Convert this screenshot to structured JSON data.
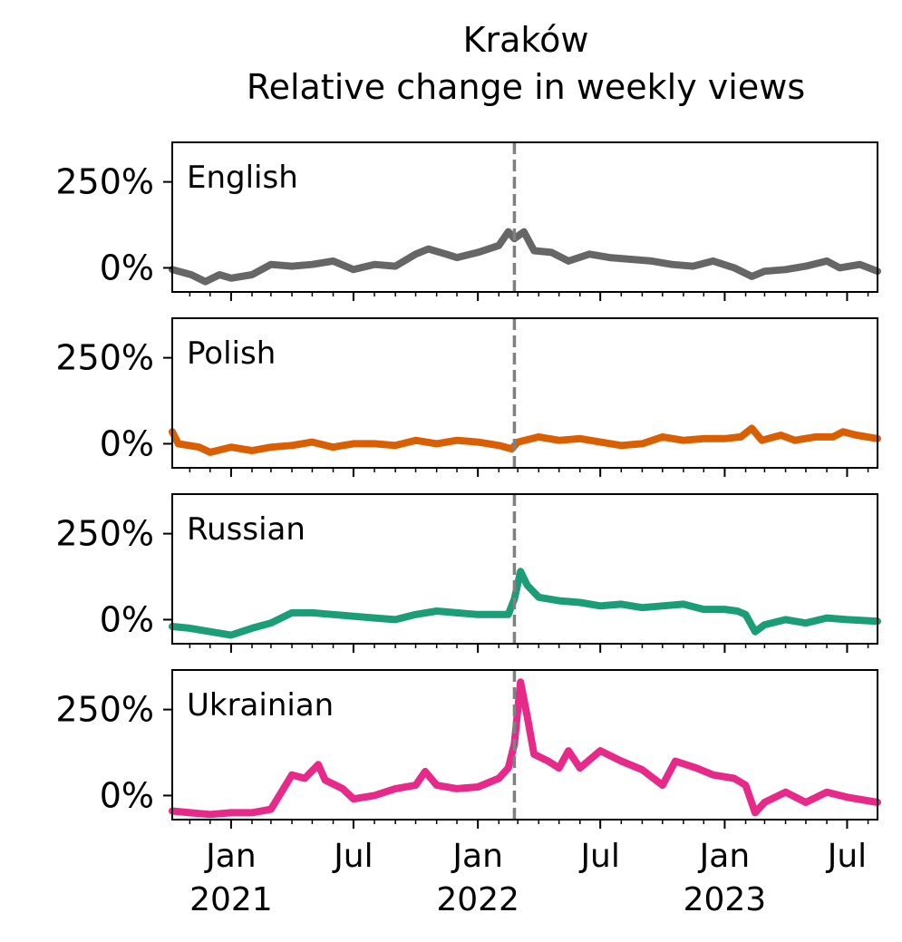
{
  "title": "Kraków",
  "subtitle": "Relative change in weekly views",
  "chart_data": {
    "type": "line",
    "x_axis": {
      "type": "date",
      "range": [
        "2020-10-06",
        "2023-08-15"
      ],
      "major_ticks": [
        {
          "date": "2021-01-01",
          "label_line1": "Jan",
          "label_line2": "2021"
        },
        {
          "date": "2021-07-01",
          "label_line1": "Jul",
          "label_line2": ""
        },
        {
          "date": "2022-01-01",
          "label_line1": "Jan",
          "label_line2": "2022"
        },
        {
          "date": "2022-07-01",
          "label_line1": "Jul",
          "label_line2": ""
        },
        {
          "date": "2023-01-01",
          "label_line1": "Jan",
          "label_line2": "2023"
        },
        {
          "date": "2023-07-01",
          "label_line1": "Jul",
          "label_line2": ""
        }
      ],
      "minor_ticks": "monthly"
    },
    "y_axis": {
      "unit": "%",
      "ylim": [
        -70,
        365
      ],
      "tick_labels": [
        {
          "value": 0,
          "label": "0%"
        },
        {
          "value": 250,
          "label": "250%"
        }
      ]
    },
    "reference_line": {
      "date": "2022-02-24",
      "style": "dashed",
      "color": "#808080"
    },
    "grid": false,
    "legend": "none; series names printed inside each panel",
    "panels": [
      {
        "name": "English",
        "color": "#666666",
        "points": [
          [
            "2020-10-06",
            -5
          ],
          [
            "2020-11-03",
            -20
          ],
          [
            "2020-11-24",
            -40
          ],
          [
            "2020-12-15",
            -20
          ],
          [
            "2021-01-01",
            -30
          ],
          [
            "2021-02-01",
            -20
          ],
          [
            "2021-03-01",
            10
          ],
          [
            "2021-04-01",
            5
          ],
          [
            "2021-05-01",
            10
          ],
          [
            "2021-06-01",
            20
          ],
          [
            "2021-07-01",
            -5
          ],
          [
            "2021-08-01",
            10
          ],
          [
            "2021-09-01",
            5
          ],
          [
            "2021-10-01",
            40
          ],
          [
            "2021-10-20",
            55
          ],
          [
            "2021-11-15",
            40
          ],
          [
            "2021-12-01",
            30
          ],
          [
            "2022-01-01",
            45
          ],
          [
            "2022-02-01",
            65
          ],
          [
            "2022-02-15",
            105
          ],
          [
            "2022-02-24",
            85
          ],
          [
            "2022-03-10",
            105
          ],
          [
            "2022-03-25",
            50
          ],
          [
            "2022-04-20",
            45
          ],
          [
            "2022-05-15",
            20
          ],
          [
            "2022-06-15",
            40
          ],
          [
            "2022-07-15",
            30
          ],
          [
            "2022-08-15",
            25
          ],
          [
            "2022-09-15",
            20
          ],
          [
            "2022-10-15",
            10
          ],
          [
            "2022-11-15",
            5
          ],
          [
            "2022-12-15",
            20
          ],
          [
            "2023-01-15",
            0
          ],
          [
            "2023-02-10",
            -25
          ],
          [
            "2023-03-01",
            -10
          ],
          [
            "2023-04-01",
            -5
          ],
          [
            "2023-05-01",
            5
          ],
          [
            "2023-06-01",
            20
          ],
          [
            "2023-06-20",
            0
          ],
          [
            "2023-07-20",
            10
          ],
          [
            "2023-08-15",
            -10
          ]
        ]
      },
      {
        "name": "Polish",
        "color": "#d95f02",
        "points": [
          [
            "2020-10-06",
            35
          ],
          [
            "2020-10-15",
            0
          ],
          [
            "2020-11-15",
            -10
          ],
          [
            "2020-12-01",
            -25
          ],
          [
            "2021-01-01",
            -10
          ],
          [
            "2021-02-01",
            -20
          ],
          [
            "2021-03-01",
            -10
          ],
          [
            "2021-04-01",
            -5
          ],
          [
            "2021-05-01",
            5
          ],
          [
            "2021-06-01",
            -10
          ],
          [
            "2021-07-01",
            0
          ],
          [
            "2021-08-01",
            0
          ],
          [
            "2021-09-01",
            -5
          ],
          [
            "2021-10-01",
            10
          ],
          [
            "2021-11-01",
            0
          ],
          [
            "2021-12-01",
            10
          ],
          [
            "2022-01-01",
            5
          ],
          [
            "2022-02-01",
            -5
          ],
          [
            "2022-02-20",
            -15
          ],
          [
            "2022-03-01",
            5
          ],
          [
            "2022-04-01",
            20
          ],
          [
            "2022-05-01",
            10
          ],
          [
            "2022-06-01",
            15
          ],
          [
            "2022-07-01",
            5
          ],
          [
            "2022-08-01",
            -5
          ],
          [
            "2022-09-01",
            0
          ],
          [
            "2022-10-01",
            20
          ],
          [
            "2022-11-01",
            10
          ],
          [
            "2022-12-01",
            15
          ],
          [
            "2023-01-01",
            15
          ],
          [
            "2023-01-25",
            20
          ],
          [
            "2023-02-10",
            45
          ],
          [
            "2023-02-25",
            10
          ],
          [
            "2023-03-25",
            25
          ],
          [
            "2023-04-15",
            10
          ],
          [
            "2023-05-15",
            20
          ],
          [
            "2023-06-10",
            20
          ],
          [
            "2023-06-25",
            35
          ],
          [
            "2023-07-15",
            25
          ],
          [
            "2023-08-15",
            15
          ]
        ]
      },
      {
        "name": "Russian",
        "color": "#1b9e77",
        "points": [
          [
            "2020-10-06",
            -20
          ],
          [
            "2020-11-01",
            -25
          ],
          [
            "2020-12-01",
            -35
          ],
          [
            "2021-01-01",
            -45
          ],
          [
            "2021-02-01",
            -25
          ],
          [
            "2021-03-01",
            -10
          ],
          [
            "2021-04-01",
            20
          ],
          [
            "2021-05-01",
            20
          ],
          [
            "2021-06-01",
            15
          ],
          [
            "2021-07-01",
            10
          ],
          [
            "2021-08-01",
            5
          ],
          [
            "2021-09-01",
            0
          ],
          [
            "2021-10-01",
            15
          ],
          [
            "2021-11-01",
            25
          ],
          [
            "2021-12-01",
            20
          ],
          [
            "2022-01-01",
            15
          ],
          [
            "2022-02-15",
            15
          ],
          [
            "2022-02-24",
            60
          ],
          [
            "2022-03-05",
            140
          ],
          [
            "2022-03-15",
            100
          ],
          [
            "2022-04-01",
            65
          ],
          [
            "2022-05-01",
            55
          ],
          [
            "2022-06-01",
            50
          ],
          [
            "2022-07-01",
            40
          ],
          [
            "2022-08-01",
            45
          ],
          [
            "2022-09-01",
            35
          ],
          [
            "2022-10-01",
            40
          ],
          [
            "2022-11-01",
            45
          ],
          [
            "2022-12-01",
            30
          ],
          [
            "2023-01-01",
            30
          ],
          [
            "2023-01-20",
            25
          ],
          [
            "2023-02-01",
            15
          ],
          [
            "2023-02-15",
            -35
          ],
          [
            "2023-03-01",
            -15
          ],
          [
            "2023-04-01",
            0
          ],
          [
            "2023-05-01",
            -10
          ],
          [
            "2023-06-01",
            5
          ],
          [
            "2023-07-01",
            0
          ],
          [
            "2023-08-15",
            -5
          ]
        ]
      },
      {
        "name": "Ukrainian",
        "color": "#e7298a",
        "points": [
          [
            "2020-10-06",
            -45
          ],
          [
            "2020-11-01",
            -50
          ],
          [
            "2020-12-01",
            -55
          ],
          [
            "2021-01-01",
            -50
          ],
          [
            "2021-02-01",
            -50
          ],
          [
            "2021-03-01",
            -40
          ],
          [
            "2021-04-01",
            60
          ],
          [
            "2021-04-20",
            50
          ],
          [
            "2021-05-10",
            90
          ],
          [
            "2021-05-20",
            45
          ],
          [
            "2021-06-15",
            20
          ],
          [
            "2021-07-01",
            -10
          ],
          [
            "2021-08-01",
            0
          ],
          [
            "2021-09-01",
            20
          ],
          [
            "2021-10-01",
            30
          ],
          [
            "2021-10-15",
            70
          ],
          [
            "2021-11-01",
            30
          ],
          [
            "2021-12-01",
            20
          ],
          [
            "2022-01-01",
            25
          ],
          [
            "2022-02-01",
            50
          ],
          [
            "2022-02-15",
            80
          ],
          [
            "2022-02-24",
            150
          ],
          [
            "2022-03-05",
            330
          ],
          [
            "2022-03-15",
            230
          ],
          [
            "2022-03-25",
            120
          ],
          [
            "2022-04-15",
            100
          ],
          [
            "2022-05-01",
            80
          ],
          [
            "2022-05-15",
            130
          ],
          [
            "2022-06-01",
            80
          ],
          [
            "2022-07-01",
            130
          ],
          [
            "2022-08-01",
            100
          ],
          [
            "2022-09-01",
            75
          ],
          [
            "2022-10-01",
            30
          ],
          [
            "2022-10-20",
            100
          ],
          [
            "2022-11-20",
            80
          ],
          [
            "2022-12-15",
            60
          ],
          [
            "2023-01-15",
            50
          ],
          [
            "2023-02-01",
            30
          ],
          [
            "2023-02-15",
            -50
          ],
          [
            "2023-03-01",
            -20
          ],
          [
            "2023-04-01",
            10
          ],
          [
            "2023-05-01",
            -20
          ],
          [
            "2023-06-01",
            10
          ],
          [
            "2023-07-01",
            -5
          ],
          [
            "2023-08-15",
            -20
          ]
        ]
      }
    ]
  }
}
